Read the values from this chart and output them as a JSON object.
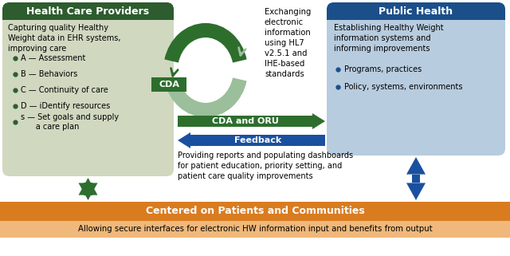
{
  "hcp_title": "Health Care Providers",
  "hcp_title_bg": "#2d5c2e",
  "hcp_body_bg": "#d0d8c0",
  "hcp_body_text": "Capturing quality Healthy\nWeight data in EHR systems,\nimproving care",
  "hcp_bullets": [
    "A — Assessment",
    "B — Behaviors",
    "C — Continuity of care",
    "D — iDentify resources",
    "s — Set goals and supply\n      a care plan"
  ],
  "ph_title": "Public Health",
  "ph_title_bg": "#1b4f8a",
  "ph_body_bg": "#b8ccdf",
  "ph_body_text": "Establishing Healthy Weight\ninformation systems and\ninforming improvements",
  "ph_bullets": [
    "Programs, practices",
    "Policy, systems, environments"
  ],
  "middle_text": "Exchanging\nelectronic\ninformation\nusing HL7\nv2.5.1 and\nIHE-based\nstandards",
  "cda_arrow_label": "CDA",
  "cda_oru_arrow_label": "CDA and ORU",
  "feedback_arrow_label": "Feedback",
  "feedback_text": "Providing reports and populating dashboards\nfor patient education, priority setting, and\npatient care quality improvements",
  "bottom_title": "Centered on Patients and Communities",
  "bottom_title_bg": "#d97c20",
  "bottom_body_bg": "#f0b87a",
  "bottom_body_text": "Allowing secure interfaces for electronic HW information input and benefits from output",
  "arrow_green_dark": "#2d6e2d",
  "arrow_green_light": "#9abf9a",
  "arrow_blue": "#1a50a0",
  "bullet_color_hcp": "#2d5c2e",
  "bullet_color_ph": "#1b4f8a",
  "fig_bg": "#ffffff"
}
